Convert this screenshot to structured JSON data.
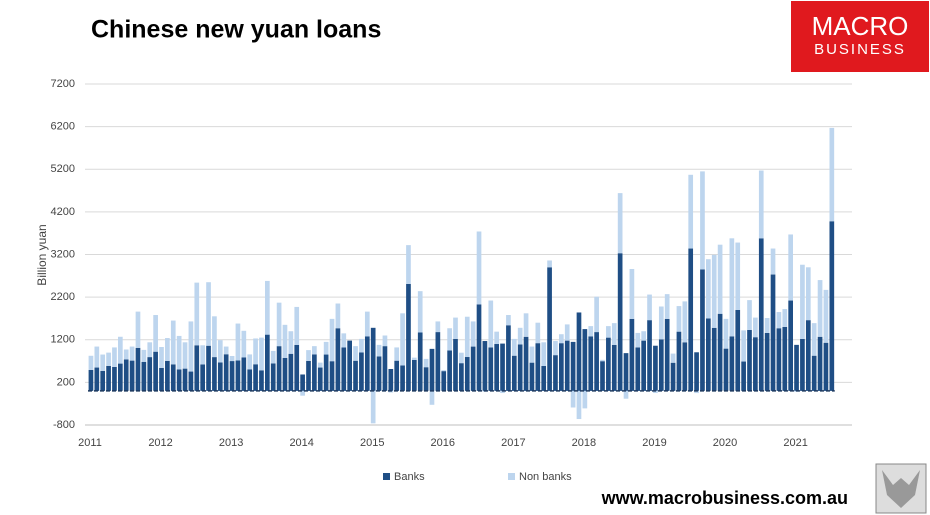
{
  "chart_data": {
    "type": "bar",
    "stacked": true,
    "title": "Chinese new yuan loans",
    "ylabel": "Billion yuan",
    "categories": [
      "2011",
      null,
      null,
      null,
      null,
      null,
      null,
      null,
      null,
      null,
      null,
      null,
      "2012",
      null,
      null,
      null,
      null,
      null,
      null,
      null,
      null,
      null,
      null,
      null,
      "2013",
      null,
      null,
      null,
      null,
      null,
      null,
      null,
      null,
      null,
      null,
      null,
      "2014",
      null,
      null,
      null,
      null,
      null,
      null,
      null,
      null,
      null,
      null,
      null,
      "2015",
      null,
      null,
      null,
      null,
      null,
      null,
      null,
      null,
      null,
      null,
      null,
      "2016",
      null,
      null,
      null,
      null,
      null,
      null,
      null,
      null,
      null,
      null,
      null,
      "2017",
      null,
      null,
      null,
      null,
      null,
      null,
      null,
      null,
      null,
      null,
      null,
      "2018",
      null,
      null,
      null,
      null,
      null,
      null,
      null,
      null,
      null,
      null,
      null,
      "2019",
      null,
      null,
      null,
      null,
      null,
      null,
      null,
      null,
      null,
      null,
      null,
      "2020",
      null,
      null,
      null,
      null,
      null,
      null,
      null,
      null,
      null,
      null,
      null,
      "2021",
      null,
      null,
      null,
      null,
      null,
      null
    ],
    "series": [
      {
        "name": "Banks",
        "color": "#1f4e85",
        "values": [
          492,
          548,
          470,
          587,
          562,
          641,
          738,
          711,
          1010,
          682,
          793,
          920,
          540,
          704,
          623,
          505,
          523,
          454,
          1070,
          620,
          1060,
          793,
          667,
          860,
          700,
          713,
          787,
          506,
          625,
          483,
          1320,
          645,
          1050,
          775,
          871,
          1080,
          385,
          702,
          857,
          548,
          853,
          697,
          1470,
          1020,
          1180,
          708,
          901,
          1280,
          1480,
          810,
          1050,
          514,
          709,
          597,
          2510,
          727,
          1370,
          556,
          986,
          1380,
          464,
          949,
          1220,
          651,
          795,
          1040,
          2030,
          1170,
          1020,
          1100,
          1110,
          1540,
          826,
          1090,
          1270,
          663,
          1120,
          584,
          2900,
          839,
          1120,
          1180,
          1150,
          1840,
          1450,
          1280,
          1380,
          697,
          1250,
          1080,
          3230,
          886,
          1690,
          1020,
          1180,
          1660,
          1060,
          1210,
          1690,
          661,
          1390,
          1140,
          3340,
          906,
          2850,
          1700,
          1480,
          1810,
          992,
          1280,
          1900,
          689,
          1430,
          1260,
          3580,
          1360,
          2730,
          1470,
          1500,
          2120,
          1080,
          1220,
          1660,
          826,
          1270,
          1130,
          3980
        ]
      },
      {
        "name": "Non banks",
        "color": "#bdd5ee",
        "values": [
          332,
          492,
          383,
          311,
          458,
          629,
          233,
          329,
          850,
          280,
          347,
          860,
          490,
          536,
          1027,
          785,
          617,
          1176,
          1470,
          450,
          1490,
          957,
          523,
          180,
          119,
          867,
          623,
          350,
          605,
          767,
          1260,
          293,
          1020,
          775,
          529,
          890,
          -112,
          255,
          193,
          115,
          297,
          993,
          580,
          330,
          0,
          342,
          319,
          580,
          -761,
          270,
          250,
          -38,
          311,
          1223,
          910,
          53,
          970,
          195,
          -326,
          250,
          24,
          521,
          500,
          245,
          945,
          590,
          1710,
          -20,
          1100,
          290,
          -50,
          240,
          394,
          390,
          550,
          377,
          480,
          556,
          160,
          331,
          210,
          380,
          -389,
          -660,
          -410,
          240,
          830,
          32,
          270,
          510,
          1410,
          -183,
          1170,
          340,
          220,
          600,
          -50,
          770,
          580,
          214,
          600,
          960,
          1730,
          -51,
          2300,
          1390,
          1710,
          1620,
          698,
          2300,
          1580,
          731,
          700,
          460,
          1590,
          350,
          610,
          380,
          420,
          1550,
          -20,
          1740,
          1240,
          764,
          1330,
          1240,
          2190
        ]
      }
    ],
    "ylim": [
      -800,
      7200
    ],
    "yticks": [
      -800,
      200,
      1200,
      2200,
      3200,
      4200,
      5200,
      6200,
      7200
    ],
    "grid": true,
    "legend": "bottom"
  },
  "branding": {
    "logo": [
      "MACRO",
      "BUSINESS"
    ],
    "website": "www.macrobusiness.com.au"
  }
}
